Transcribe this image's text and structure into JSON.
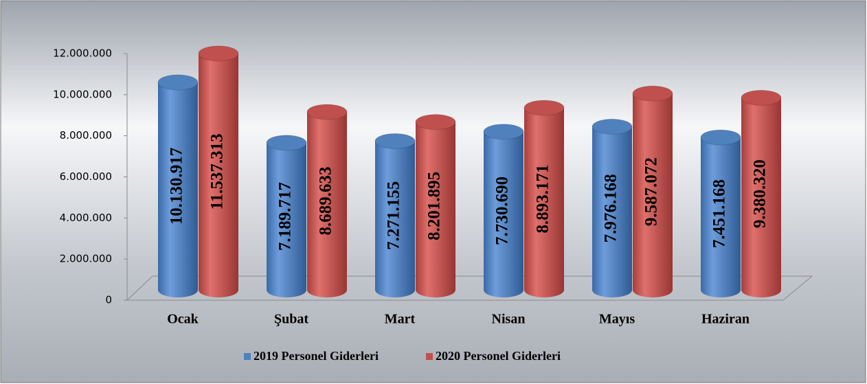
{
  "chart_data": {
    "type": "bar3d",
    "categories": [
      "Ocak",
      "Şubat",
      "Mart",
      "Nisan",
      "Mayıs",
      "Haziran"
    ],
    "series": [
      {
        "name": "2019 Personel Giderleri",
        "color": "#4f81bd",
        "values": [
          10130917,
          7189717,
          7271155,
          7730690,
          7976168,
          7451168
        ],
        "value_labels": [
          "10.130.917",
          "7.189.717",
          "7.271.155",
          "7.730.690",
          "7.976.168",
          "7.451.168"
        ]
      },
      {
        "name": "2020 Personel Giderleri",
        "color": "#c0504d",
        "values": [
          11537313,
          8689633,
          8201895,
          8893171,
          9587072,
          9380320
        ],
        "value_labels": [
          "11.537.313",
          "8.689.633",
          "8.201.895",
          "8.893.171",
          "9.587.072",
          "9.380.320"
        ]
      }
    ],
    "ylim": [
      0,
      12000000
    ],
    "yticks": [
      0,
      {
        "value": 2000000,
        "label": "2.000.000"
      },
      {
        "value": 4000000,
        "label": "4.000.000"
      },
      {
        "value": 6000000,
        "label": "6.000.000"
      },
      {
        "value": 8000000,
        "label": "8.000.000"
      },
      {
        "value": 10000000,
        "label": "10.000.000"
      },
      {
        "value": 12000000,
        "label": "12.000.000"
      }
    ],
    "grid": false,
    "legend": "bottom"
  }
}
